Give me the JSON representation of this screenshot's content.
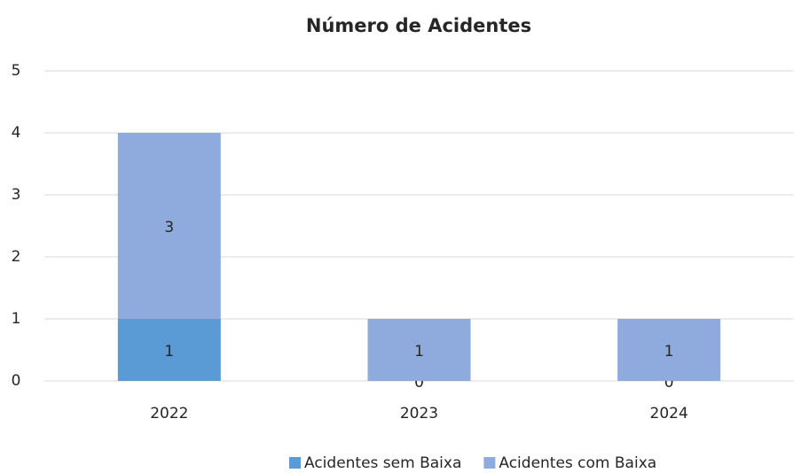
{
  "chart_data": {
    "type": "stacked_bar",
    "title": "Número de Acidentes",
    "categories": [
      "2022",
      "2023",
      "2024"
    ],
    "series": [
      {
        "name": "Acidentes sem Baixa",
        "color": "#5b9bd5",
        "values": [
          1,
          0,
          0
        ]
      },
      {
        "name": "Acidentes com Baixa",
        "color": "#8faadc",
        "values": [
          3,
          1,
          1
        ]
      }
    ],
    "ylim": [
      0,
      5
    ],
    "yticks": [
      0,
      1,
      2,
      3,
      4,
      5
    ],
    "grid": true,
    "legend": "bottom"
  }
}
